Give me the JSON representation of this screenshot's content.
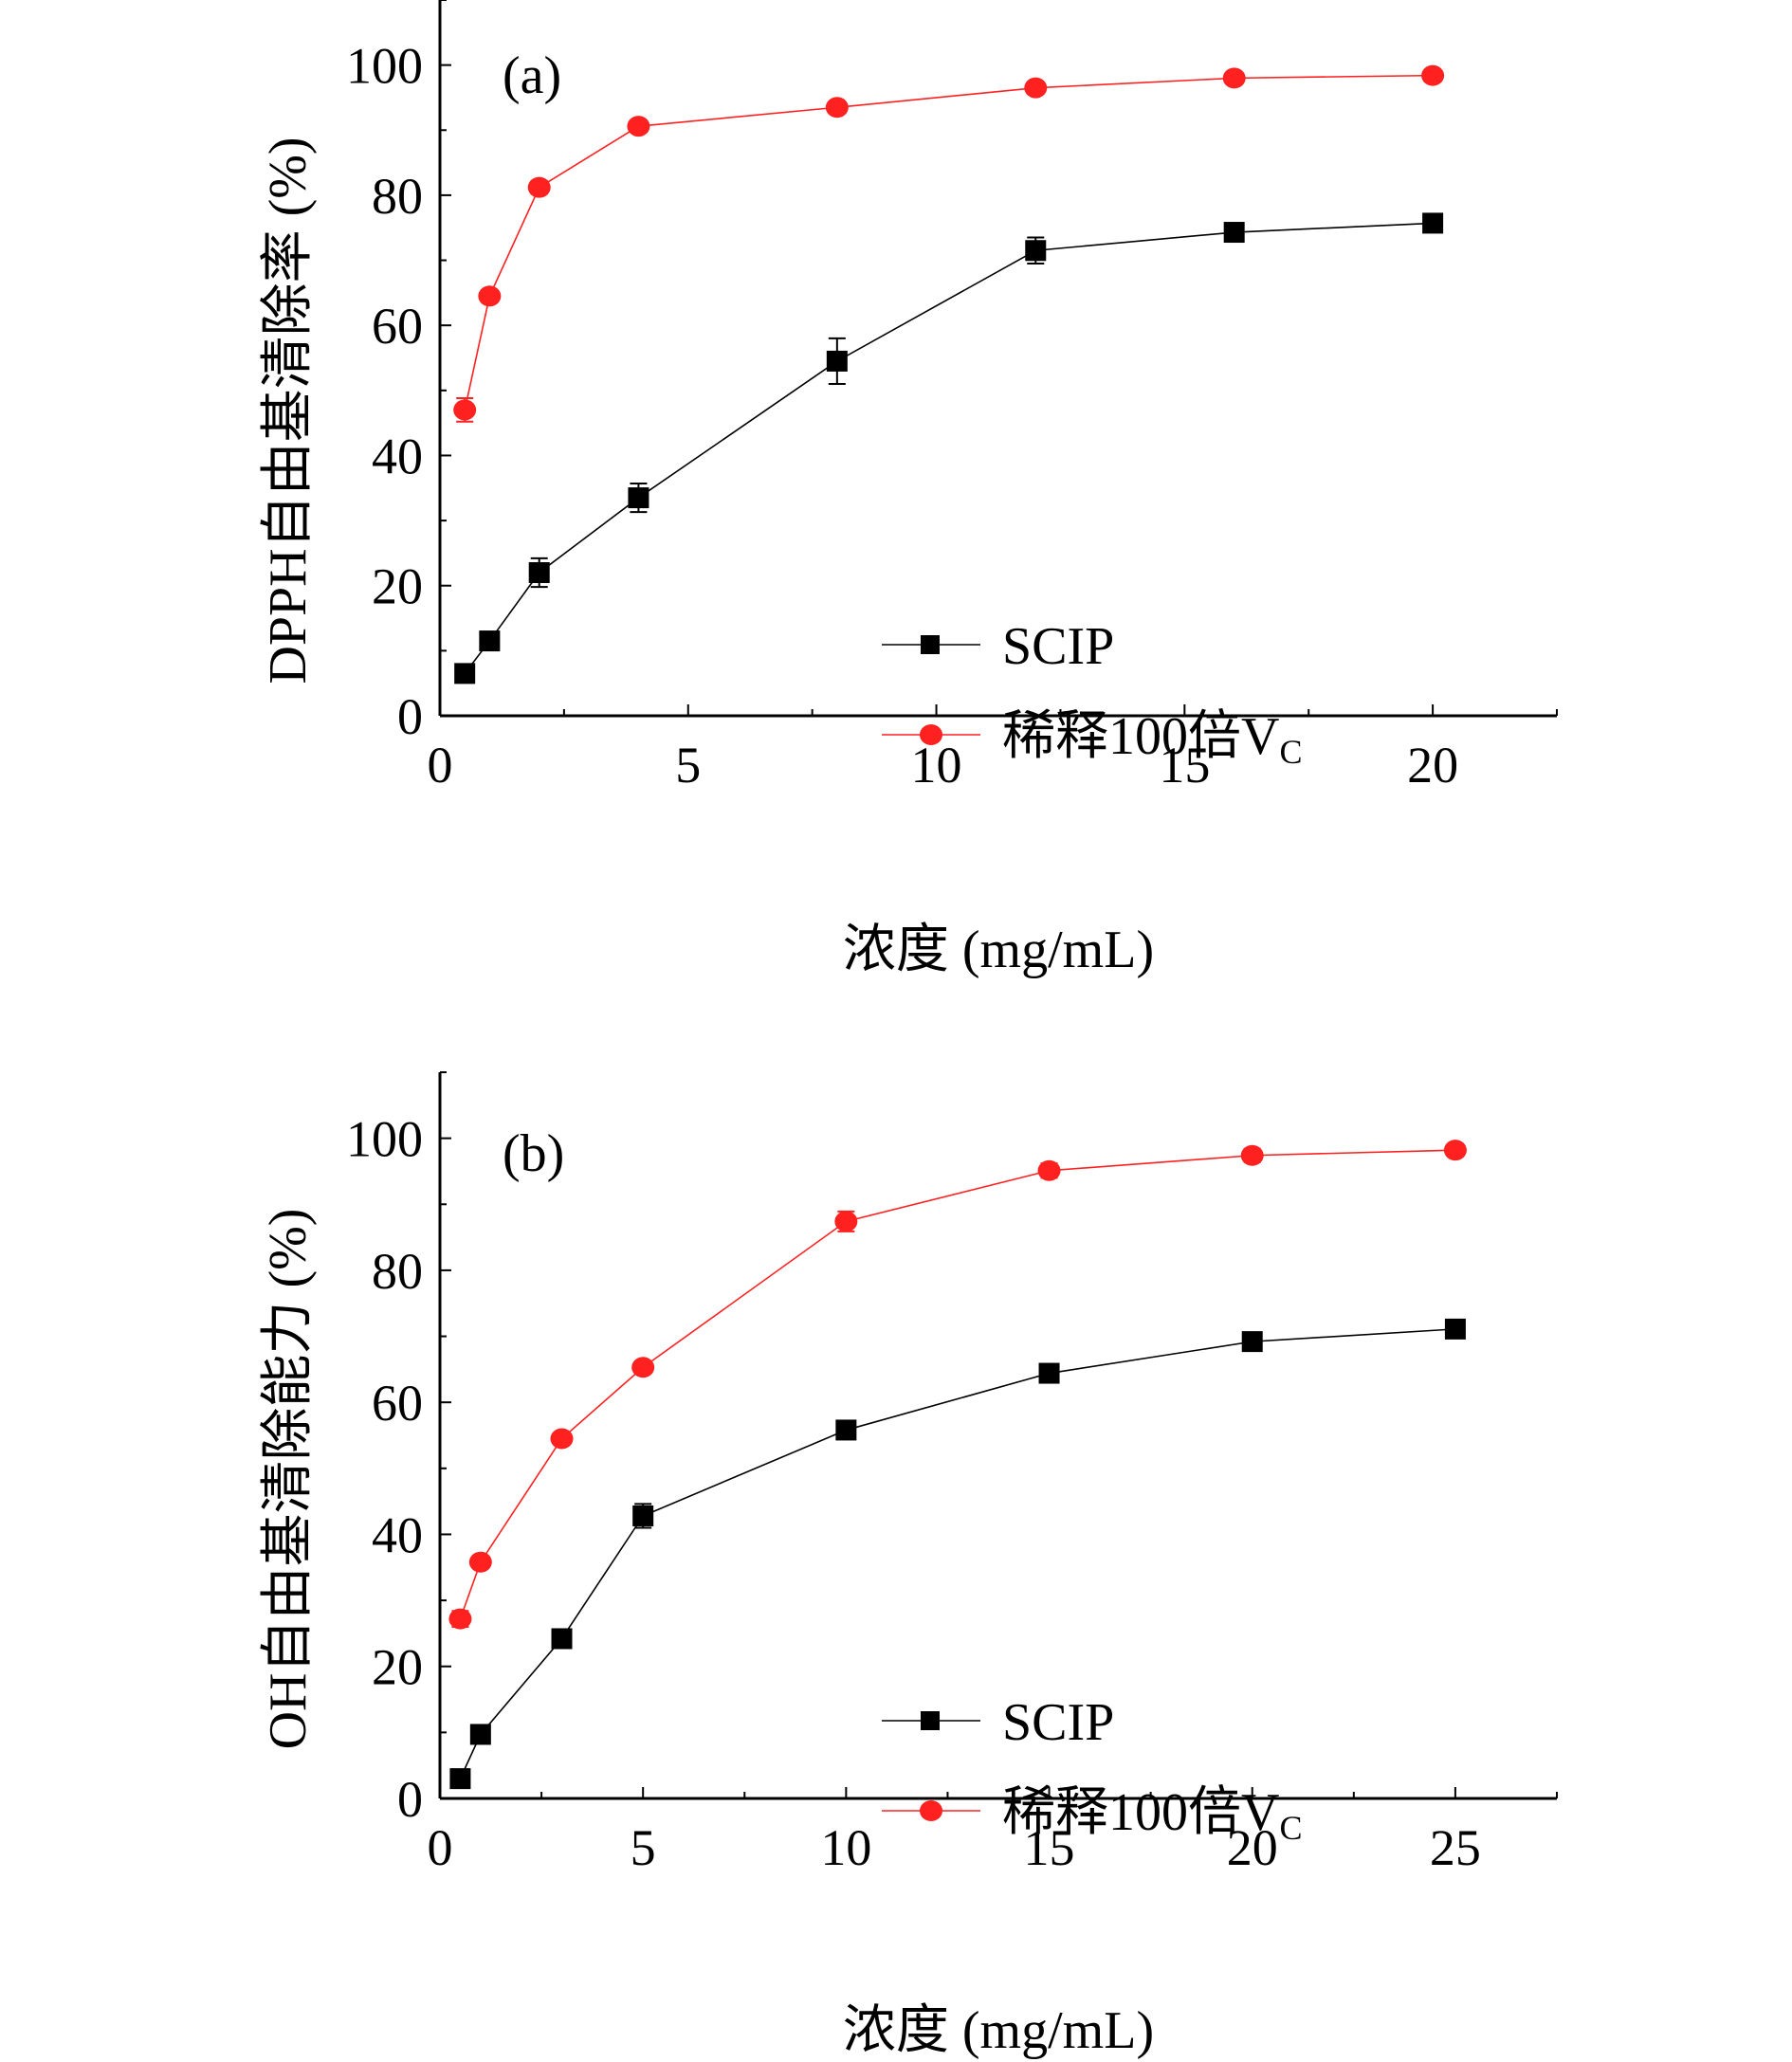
{
  "chart_data": [
    {
      "type": "line",
      "panel_label": "(a)",
      "title": "",
      "xlabel": "浓度 (mg/mL)",
      "ylabel": "DPPH自由基清除率 (%)",
      "xlim": [
        0,
        22.5
      ],
      "ylim": [
        0,
        110
      ],
      "xticks": [
        0,
        5,
        10,
        15,
        20
      ],
      "yticks": [
        0,
        20,
        40,
        60,
        80,
        100
      ],
      "grid": false,
      "legend_position": "bottom-right",
      "series": [
        {
          "name": "SCIP",
          "marker": "square",
          "color": "#000000",
          "x": [
            0.5,
            1,
            2,
            4,
            8,
            12,
            16,
            20
          ],
          "y": [
            6.5,
            11.5,
            22.0,
            33.5,
            54.5,
            71.5,
            74.3,
            75.7
          ],
          "err": [
            0.5,
            0.6,
            2.2,
            2.2,
            3.5,
            2.0,
            1.3,
            1.3
          ]
        },
        {
          "name": "稀释100倍Vc",
          "marker": "circle",
          "color": "#ff2020",
          "x": [
            0.5,
            1,
            2,
            4,
            8,
            12,
            16,
            20
          ],
          "y": [
            47.0,
            64.5,
            81.2,
            90.6,
            93.5,
            96.5,
            98.0,
            98.4
          ],
          "err": [
            1.8,
            0.6,
            1.0,
            0.5,
            0.4,
            0.4,
            0.5,
            0.4
          ]
        }
      ]
    },
    {
      "type": "line",
      "panel_label": "(b)",
      "title": "",
      "xlabel": "浓度 (mg/mL)",
      "ylabel": "OH自由基清除能力 (%)",
      "xlim": [
        0,
        27.5
      ],
      "ylim": [
        0,
        110
      ],
      "xticks": [
        0,
        5,
        10,
        15,
        20,
        25
      ],
      "yticks": [
        0,
        20,
        40,
        60,
        80,
        100
      ],
      "grid": false,
      "legend_position": "bottom-right",
      "series": [
        {
          "name": "SCIP",
          "marker": "square",
          "color": "#000000",
          "x": [
            0.5,
            1,
            3,
            5,
            10,
            15,
            20,
            25
          ],
          "y": [
            3.0,
            9.7,
            24.2,
            42.8,
            55.8,
            64.4,
            69.2,
            71.1
          ],
          "err": [
            0.4,
            0.5,
            0.5,
            1.8,
            0.6,
            0.6,
            0.5,
            0.5
          ]
        },
        {
          "name": "稀释100倍Vc",
          "marker": "circle",
          "color": "#ff2020",
          "x": [
            0.5,
            1,
            3,
            5,
            10,
            15,
            20,
            25
          ],
          "y": [
            27.2,
            35.8,
            54.5,
            65.3,
            87.4,
            95.1,
            97.4,
            98.2
          ],
          "err": [
            1.2,
            0.5,
            0.6,
            0.5,
            1.5,
            1.1,
            1.0,
            0.5
          ]
        }
      ]
    }
  ]
}
